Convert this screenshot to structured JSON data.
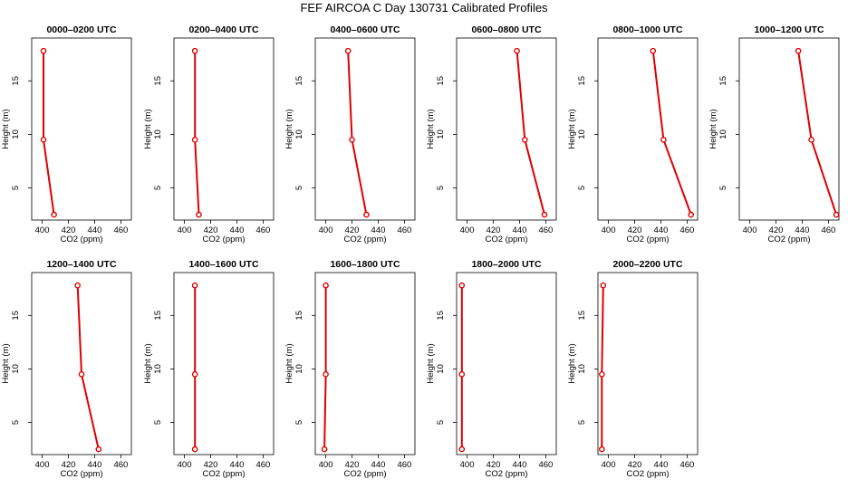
{
  "title": "FEF AIRCOA C  Day 130731  Calibrated Profiles",
  "colors": {
    "profile": "#dd0000",
    "axis": "#000000",
    "background": "#ffffff"
  },
  "chart_data": [
    {
      "type": "line",
      "title": "0000–0200 UTC",
      "xlabel": "CO2 (ppm)",
      "ylabel": "Height (m)",
      "xlim": [
        392,
        468
      ],
      "ylim": [
        2,
        19
      ],
      "xticks": [
        400,
        420,
        440,
        460
      ],
      "yticks": [
        5,
        10,
        15
      ],
      "x": [
        401,
        401,
        409
      ],
      "y": [
        17.8,
        9.5,
        2.5
      ]
    },
    {
      "type": "line",
      "title": "0200–0400 UTC",
      "xlabel": "CO2 (ppm)",
      "ylabel": "Height (m)",
      "xlim": [
        392,
        468
      ],
      "ylim": [
        2,
        19
      ],
      "xticks": [
        400,
        420,
        440,
        460
      ],
      "yticks": [
        5,
        10,
        15
      ],
      "x": [
        408,
        408,
        411
      ],
      "y": [
        17.8,
        9.5,
        2.5
      ]
    },
    {
      "type": "line",
      "title": "0400–0600 UTC",
      "xlabel": "CO2 (ppm)",
      "ylabel": "Height (m)",
      "xlim": [
        392,
        468
      ],
      "ylim": [
        2,
        19
      ],
      "xticks": [
        400,
        420,
        440,
        460
      ],
      "yticks": [
        5,
        10,
        15
      ],
      "x": [
        417,
        420,
        431
      ],
      "y": [
        17.8,
        9.5,
        2.5
      ]
    },
    {
      "type": "line",
      "title": "0600–0800 UTC",
      "xlabel": "CO2 (ppm)",
      "ylabel": "Height (m)",
      "xlim": [
        392,
        468
      ],
      "ylim": [
        2,
        19
      ],
      "xticks": [
        400,
        420,
        440,
        460
      ],
      "yticks": [
        5,
        10,
        15
      ],
      "x": [
        438,
        444,
        459
      ],
      "y": [
        17.8,
        9.5,
        2.5
      ]
    },
    {
      "type": "line",
      "title": "0800–1000 UTC",
      "xlabel": "CO2 (ppm)",
      "ylabel": "Height (m)",
      "xlim": [
        392,
        468
      ],
      "ylim": [
        2,
        19
      ],
      "xticks": [
        400,
        420,
        440,
        460
      ],
      "yticks": [
        5,
        10,
        15
      ],
      "x": [
        434,
        442,
        463
      ],
      "y": [
        17.8,
        9.5,
        2.5
      ]
    },
    {
      "type": "line",
      "title": "1000–1200 UTC",
      "xlabel": "CO2 (ppm)",
      "ylabel": "Height (m)",
      "xlim": [
        392,
        468
      ],
      "ylim": [
        2,
        19
      ],
      "xticks": [
        400,
        420,
        440,
        460
      ],
      "yticks": [
        5,
        10,
        15
      ],
      "x": [
        437,
        447,
        466
      ],
      "y": [
        17.8,
        9.5,
        2.5
      ]
    },
    {
      "type": "line",
      "title": "1200–1400 UTC",
      "xlabel": "CO2 (ppm)",
      "ylabel": "Height (m)",
      "xlim": [
        392,
        468
      ],
      "ylim": [
        2,
        19
      ],
      "xticks": [
        400,
        420,
        440,
        460
      ],
      "yticks": [
        5,
        10,
        15
      ],
      "x": [
        427,
        430,
        443
      ],
      "y": [
        17.8,
        9.5,
        2.5
      ]
    },
    {
      "type": "line",
      "title": "1400–1600 UTC",
      "xlabel": "CO2 (ppm)",
      "ylabel": "Height (m)",
      "xlim": [
        392,
        468
      ],
      "ylim": [
        2,
        19
      ],
      "xticks": [
        400,
        420,
        440,
        460
      ],
      "yticks": [
        5,
        10,
        15
      ],
      "x": [
        408,
        408,
        408
      ],
      "y": [
        17.8,
        9.5,
        2.5
      ]
    },
    {
      "type": "line",
      "title": "1600–1800 UTC",
      "xlabel": "CO2 (ppm)",
      "ylabel": "Height (m)",
      "xlim": [
        392,
        468
      ],
      "ylim": [
        2,
        19
      ],
      "xticks": [
        400,
        420,
        440,
        460
      ],
      "yticks": [
        5,
        10,
        15
      ],
      "x": [
        400,
        400,
        399
      ],
      "y": [
        17.8,
        9.5,
        2.5
      ]
    },
    {
      "type": "line",
      "title": "1800–2000 UTC",
      "xlabel": "CO2 (ppm)",
      "ylabel": "Height (m)",
      "xlim": [
        392,
        468
      ],
      "ylim": [
        2,
        19
      ],
      "xticks": [
        400,
        420,
        440,
        460
      ],
      "yticks": [
        5,
        10,
        15
      ],
      "x": [
        396,
        396,
        396
      ],
      "y": [
        17.8,
        9.5,
        2.5
      ]
    },
    {
      "type": "line",
      "title": "2000–2200 UTC",
      "xlabel": "CO2 (ppm)",
      "ylabel": "Height (m)",
      "xlim": [
        392,
        468
      ],
      "ylim": [
        2,
        19
      ],
      "xticks": [
        400,
        420,
        440,
        460
      ],
      "yticks": [
        5,
        10,
        15
      ],
      "x": [
        396,
        395,
        395
      ],
      "y": [
        17.8,
        9.5,
        2.5
      ]
    }
  ]
}
